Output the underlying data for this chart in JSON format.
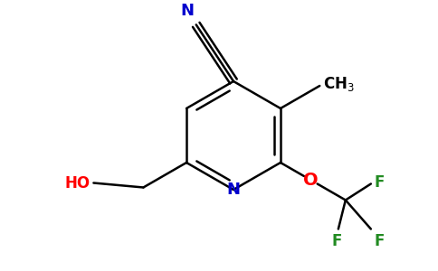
{
  "background_color": "#ffffff",
  "bond_color": "#000000",
  "N_color": "#0000cd",
  "O_color": "#ff0000",
  "F_color": "#228b22",
  "lw": 1.8,
  "figsize": [
    4.84,
    3.0
  ],
  "dpi": 100,
  "xlim": [
    0,
    484
  ],
  "ylim": [
    0,
    300
  ]
}
